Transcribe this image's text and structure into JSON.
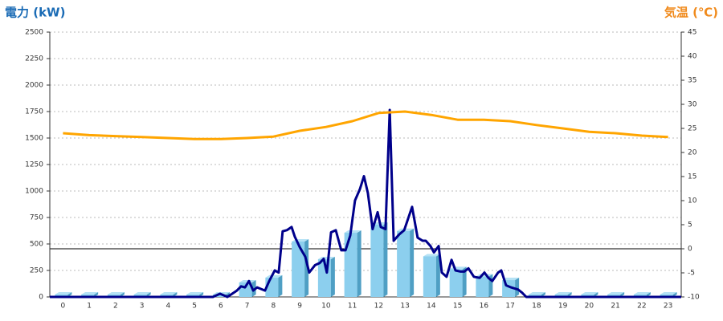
{
  "chart_data": {
    "type": "bar",
    "title": "電力 (kW)",
    "title_right": "気温 (℃)",
    "categories": [
      "0",
      "1",
      "2",
      "3",
      "4",
      "5",
      "6",
      "7",
      "8",
      "9",
      "10",
      "11",
      "12",
      "13",
      "14",
      "15",
      "16",
      "17",
      "18",
      "19",
      "20",
      "21",
      "22",
      "23"
    ],
    "series": [
      {
        "type": "bar",
        "color": "#8ccfee",
        "values": [
          0,
          0,
          0,
          0,
          0,
          0,
          0,
          114,
          160,
          500,
          333,
          583,
          659,
          600,
          360,
          240,
          170,
          136,
          0,
          0,
          0,
          0,
          0,
          0
        ]
      },
      {
        "type": "line",
        "color": "#00008b",
        "x": [
          0,
          6.2,
          6.47,
          6.75,
          7.11,
          7.27,
          7.42,
          7.57,
          7.73,
          7.88,
          8.18,
          8.34,
          8.55,
          8.7,
          8.85,
          9.01,
          9.19,
          9.31,
          9.5,
          9.71,
          9.86,
          10.08,
          10.26,
          10.41,
          10.53,
          10.69,
          10.87,
          11.08,
          11.24,
          11.42,
          11.6,
          11.79,
          11.94,
          12.09,
          12.27,
          12.46,
          12.58,
          12.76,
          12.92,
          13.07,
          13.28,
          13.47,
          13.77,
          13.98,
          14.17,
          14.29,
          14.47,
          14.6,
          14.78,
          14.9,
          15.08,
          15.27,
          15.42,
          15.6,
          15.76,
          15.91,
          16.12,
          16.34,
          16.52,
          16.67,
          16.82,
          17.04,
          17.16,
          17.34,
          17.53,
          17.8,
          17.95,
          18.11,
          24
        ],
        "values": [
          0,
          0,
          30,
          0,
          60,
          100,
          90,
          150,
          60,
          90,
          60,
          150,
          250,
          230,
          620,
          630,
          660,
          570,
          470,
          380,
          230,
          300,
          320,
          360,
          230,
          610,
          630,
          440,
          440,
          580,
          910,
          1020,
          1140,
          980,
          640,
          800,
          660,
          640,
          1765,
          530,
          590,
          630,
          850,
          560,
          530,
          530,
          480,
          420,
          480,
          230,
          190,
          350,
          250,
          240,
          240,
          270,
          190,
          180,
          230,
          180,
          150,
          230,
          250,
          110,
          90,
          70,
          40,
          0,
          0
        ]
      },
      {
        "type": "line",
        "axis": "y2",
        "color": "#ffa500",
        "values": [
          24,
          23.6,
          23.4,
          23.2,
          23.0,
          22.8,
          22.8,
          23,
          23.3,
          24.5,
          25.3,
          26.5,
          28.2,
          28.5,
          27.8,
          26.8,
          26.8,
          26.5,
          25.7,
          25,
          24.3,
          24,
          23.5,
          23.2
        ]
      }
    ],
    "xlim": [
      0,
      24
    ],
    "ylim": [
      0,
      2500
    ],
    "yticks": [
      0,
      250,
      500,
      750,
      1000,
      1250,
      1500,
      1750,
      2000,
      2250,
      2500
    ],
    "y2lim": [
      -10,
      45
    ],
    "y2ticks": [
      -10,
      -5,
      0,
      5,
      10,
      15,
      20,
      25,
      30,
      35,
      40,
      45
    ],
    "grid": true
  }
}
